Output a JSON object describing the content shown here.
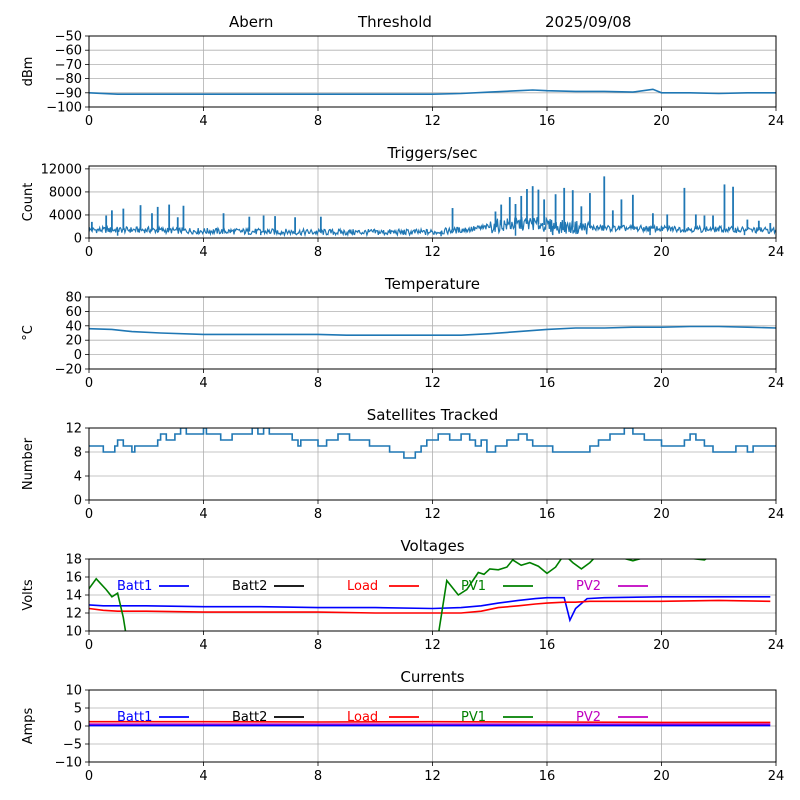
{
  "header": {
    "site": "Abern",
    "mode": "Threshold",
    "date": "2025/09/08"
  },
  "colors": {
    "series": "#1f77b4",
    "grid": "#b0b0b0",
    "batt1": "#0000ff",
    "batt2": "#000000",
    "load": "#ff0000",
    "pv1": "#008000",
    "pv2": "#c000c0"
  },
  "chart_data": [
    {
      "type": "line",
      "title": "",
      "ylabel": "dBm",
      "xlim": [
        0,
        24
      ],
      "ylim": [
        -100,
        -50
      ],
      "xticks": [
        "0",
        "4",
        "8",
        "12",
        "16",
        "20",
        "24"
      ],
      "yticks": [
        "−50",
        "−60",
        "−70",
        "−80",
        "−90",
        "−100"
      ],
      "series": [
        {
          "x": [
            0,
            1,
            2,
            3,
            4,
            5,
            6,
            7,
            8,
            9,
            10,
            11,
            12,
            13,
            14,
            15,
            15.5,
            16,
            17,
            18,
            19,
            19.7,
            20,
            21,
            22,
            23,
            24
          ],
          "y": [
            -90,
            -91,
            -91,
            -91,
            -91,
            -91,
            -91,
            -91,
            -91,
            -91,
            -91,
            -91,
            -91,
            -90.5,
            -89.5,
            -88.5,
            -88,
            -88.5,
            -89,
            -89,
            -89.5,
            -87.5,
            -90,
            -90,
            -90.5,
            -90,
            -90
          ]
        }
      ]
    },
    {
      "type": "line",
      "title": "Triggers/sec",
      "ylabel": "Count",
      "xlim": [
        0,
        24
      ],
      "ylim": [
        0,
        12500
      ],
      "xticks": [
        "0",
        "4",
        "8",
        "12",
        "16",
        "20",
        "24"
      ],
      "yticks": [
        "0",
        "4000",
        "8000",
        "12000"
      ],
      "baseline": [
        {
          "x": 0,
          "y": 1400
        },
        {
          "x": 2,
          "y": 1400
        },
        {
          "x": 4,
          "y": 1200
        },
        {
          "x": 8,
          "y": 1000
        },
        {
          "x": 12,
          "y": 1000
        },
        {
          "x": 13.5,
          "y": 1600
        },
        {
          "x": 14.5,
          "y": 2300
        },
        {
          "x": 15.5,
          "y": 2500
        },
        {
          "x": 16.5,
          "y": 1900
        },
        {
          "x": 18,
          "y": 1700
        },
        {
          "x": 20,
          "y": 1600
        },
        {
          "x": 22,
          "y": 1500
        },
        {
          "x": 24,
          "y": 1300
        }
      ],
      "spikes": [
        [
          0.1,
          2800
        ],
        [
          0.6,
          3900
        ],
        [
          0.8,
          4800
        ],
        [
          1.2,
          5100
        ],
        [
          1.8,
          5700
        ],
        [
          2.2,
          4300
        ],
        [
          2.4,
          5400
        ],
        [
          2.8,
          5800
        ],
        [
          3.1,
          3600
        ],
        [
          3.3,
          5600
        ],
        [
          4.7,
          4300
        ],
        [
          5.6,
          3700
        ],
        [
          6.1,
          3900
        ],
        [
          6.5,
          3800
        ],
        [
          7.2,
          3600
        ],
        [
          8.1,
          3700
        ],
        [
          12.7,
          5200
        ],
        [
          14.2,
          4600
        ],
        [
          14.4,
          5800
        ],
        [
          14.7,
          7100
        ],
        [
          14.9,
          5900
        ],
        [
          15.1,
          7300
        ],
        [
          15.3,
          8500
        ],
        [
          15.5,
          9000
        ],
        [
          15.7,
          8400
        ],
        [
          15.9,
          6700
        ],
        [
          16.3,
          7600
        ],
        [
          16.6,
          8700
        ],
        [
          16.9,
          8300
        ],
        [
          17.2,
          5500
        ],
        [
          17.5,
          7800
        ],
        [
          18.0,
          10700
        ],
        [
          18.3,
          4800
        ],
        [
          18.6,
          6700
        ],
        [
          19.0,
          7500
        ],
        [
          19.7,
          4300
        ],
        [
          20.2,
          4100
        ],
        [
          20.8,
          8700
        ],
        [
          21.2,
          4100
        ],
        [
          21.5,
          3900
        ],
        [
          21.8,
          3900
        ],
        [
          22.2,
          9300
        ],
        [
          22.5,
          8900
        ],
        [
          23.0,
          3200
        ],
        [
          23.4,
          3000
        ],
        [
          23.8,
          2600
        ]
      ],
      "dips": [
        [
          1.0,
          400
        ],
        [
          6.0,
          500
        ],
        [
          12.3,
          300
        ],
        [
          14.9,
          400
        ],
        [
          16.2,
          500
        ],
        [
          19.6,
          500
        ],
        [
          22.9,
          500
        ]
      ]
    },
    {
      "type": "line",
      "title": "Temperature",
      "ylabel": "°C",
      "xlim": [
        0,
        24
      ],
      "ylim": [
        -20,
        80
      ],
      "xticks": [
        "0",
        "4",
        "8",
        "12",
        "16",
        "20",
        "24"
      ],
      "yticks": [
        "80",
        "60",
        "40",
        "20",
        "0",
        "−20"
      ],
      "series": [
        {
          "x": [
            0,
            0.8,
            1.5,
            2.5,
            4,
            6,
            8,
            9,
            10,
            11,
            12,
            13,
            14,
            15,
            16,
            17,
            18,
            19,
            20,
            21,
            22,
            23,
            24
          ],
          "y": [
            36,
            35,
            32,
            30,
            28,
            28,
            28,
            27,
            27,
            27,
            27,
            27,
            29,
            32,
            35,
            37,
            37,
            38,
            38,
            39,
            39,
            38,
            37
          ]
        }
      ]
    },
    {
      "type": "line",
      "title": "Satellites Tracked",
      "ylabel": "Number",
      "xlim": [
        0,
        24
      ],
      "ylim": [
        0,
        12
      ],
      "xticks": [
        "0",
        "4",
        "8",
        "12",
        "16",
        "20",
        "24"
      ],
      "yticks": [
        "0",
        "4",
        "8",
        "12"
      ],
      "series": [
        {
          "x": [
            0,
            0.3,
            0.5,
            0.9,
            1.0,
            1.2,
            1.3,
            1.5,
            1.6,
            1.9,
            2.2,
            2.4,
            2.5,
            2.7,
            3.0,
            3.2,
            3.4,
            3.9,
            4.0,
            4.1,
            4.3,
            4.6,
            5.0,
            5.6,
            5.7,
            5.9,
            6.1,
            6.3,
            7.0,
            7.1,
            7.3,
            7.4,
            7.7,
            8.0,
            8.3,
            8.6,
            8.7,
            9.1,
            9.4,
            9.8,
            10.0,
            10.5,
            10.8,
            11.0,
            11.4,
            11.6,
            11.8,
            12.0,
            12.2,
            12.6,
            13.0,
            13.3,
            13.5,
            13.7,
            13.9,
            14.2,
            14.6,
            15.0,
            15.3,
            15.5,
            15.9,
            16.2,
            16.5,
            16.7,
            17.0,
            17.5,
            17.8,
            18.0,
            18.2,
            18.5,
            18.7,
            19.0,
            19.4,
            19.8,
            20.0,
            20.5,
            20.8,
            21.0,
            21.2,
            21.5,
            21.8,
            22.3,
            22.6,
            22.8,
            23.0,
            23.2,
            23.5,
            24
          ],
          "y": [
            9,
            9,
            8,
            9,
            10,
            9,
            9,
            8,
            9,
            9,
            9,
            10,
            11,
            10,
            11,
            12,
            11,
            11,
            12,
            11,
            11,
            10,
            11,
            11,
            12,
            11,
            12,
            11,
            11,
            10,
            9,
            10,
            10,
            9,
            10,
            10,
            11,
            10,
            10,
            9,
            9,
            8,
            8,
            7,
            8,
            9,
            10,
            10,
            11,
            10,
            11,
            10,
            9,
            10,
            8,
            9,
            10,
            11,
            10,
            9,
            9,
            8,
            8,
            8,
            8,
            9,
            10,
            10,
            11,
            11,
            12,
            11,
            10,
            10,
            9,
            9,
            10,
            11,
            10,
            9,
            8,
            8,
            9,
            9,
            8,
            9,
            9,
            9
          ]
        }
      ]
    },
    {
      "type": "line",
      "title": "Voltages",
      "ylabel": "Volts",
      "xlim": [
        0,
        24
      ],
      "ylim": [
        10,
        18
      ],
      "xticks": [
        "0",
        "4",
        "8",
        "12",
        "16",
        "20",
        "24"
      ],
      "yticks": [
        "10",
        "12",
        "14",
        "16",
        "18"
      ],
      "legend": [
        "Batt1",
        "Batt2",
        "Load",
        "PV1",
        "PV2"
      ],
      "series": [
        {
          "name": "Batt1",
          "x": [
            0,
            0.5,
            1,
            2,
            4,
            6,
            8,
            10,
            12,
            13,
            13.7,
            14.3,
            15,
            15.6,
            16,
            16.6,
            16.8,
            17.0,
            17.4,
            18,
            20,
            22,
            23.8
          ],
          "y": [
            12.9,
            12.8,
            12.8,
            12.8,
            12.7,
            12.7,
            12.6,
            12.6,
            12.5,
            12.6,
            12.8,
            13.1,
            13.4,
            13.6,
            13.7,
            13.7,
            11.2,
            12.5,
            13.6,
            13.7,
            13.8,
            13.8,
            13.8
          ]
        },
        {
          "name": "Load",
          "x": [
            0,
            0.5,
            1,
            2,
            4,
            6,
            8,
            10,
            12,
            13,
            13.7,
            14.3,
            15,
            15.6,
            16,
            16.6,
            17,
            17.5,
            18,
            20,
            22,
            23.8
          ],
          "y": [
            12.5,
            12.3,
            12.2,
            12.2,
            12.1,
            12.1,
            12.1,
            12.0,
            12.0,
            12.0,
            12.2,
            12.6,
            12.8,
            13.0,
            13.1,
            13.2,
            13.2,
            13.3,
            13.3,
            13.3,
            13.4,
            13.3
          ]
        },
        {
          "name": "PV1",
          "x": [
            0,
            0.25,
            0.6,
            0.8,
            1.0,
            1.2,
            1.3,
            12.2,
            12.5,
            12.9,
            13.2,
            13.6,
            13.8,
            14.0,
            14.3,
            14.6,
            14.8,
            15.1,
            15.4,
            15.7,
            16.0,
            16.3,
            16.6,
            16.9,
            17.2,
            17.5,
            17.8,
            18.3,
            19.0,
            19.8,
            21.5,
            21.8
          ],
          "y": [
            14.7,
            15.8,
            14.6,
            13.8,
            14.2,
            11.5,
            9.5,
            9.5,
            15.6,
            14.0,
            14.6,
            16.5,
            16.3,
            16.9,
            16.8,
            17.1,
            17.9,
            17.3,
            17.6,
            17.2,
            16.4,
            17.1,
            18.5,
            17.6,
            16.9,
            17.6,
            18.6,
            18.4,
            17.8,
            18.5,
            17.9,
            18.5
          ]
        }
      ]
    },
    {
      "type": "line",
      "title": "Currents",
      "ylabel": "Amps",
      "xlim": [
        0,
        24
      ],
      "ylim": [
        -10,
        10
      ],
      "xticks": [
        "0",
        "4",
        "8",
        "12",
        "16",
        "20",
        "24"
      ],
      "yticks": [
        "10",
        "5",
        "0",
        "−5",
        "−10"
      ],
      "legend": [
        "Batt1",
        "Batt2",
        "Load",
        "PV1",
        "PV2"
      ],
      "series": [
        {
          "name": "Load",
          "x": [
            0,
            4,
            8,
            12,
            16,
            20,
            23.8
          ],
          "y": [
            1.2,
            1.2,
            1.1,
            1.2,
            1.1,
            1.0,
            1.0
          ]
        },
        {
          "name": "PV2",
          "x": [
            0,
            4,
            8,
            12,
            16,
            20,
            23.8
          ],
          "y": [
            0.5,
            0.5,
            0.5,
            0.5,
            0.5,
            0.5,
            0.5
          ]
        },
        {
          "name": "Batt1",
          "x": [
            0,
            4,
            8,
            12,
            16,
            20,
            23.8
          ],
          "y": [
            0.1,
            0.1,
            0.1,
            0.1,
            0.1,
            0.1,
            0.1
          ]
        }
      ]
    }
  ]
}
